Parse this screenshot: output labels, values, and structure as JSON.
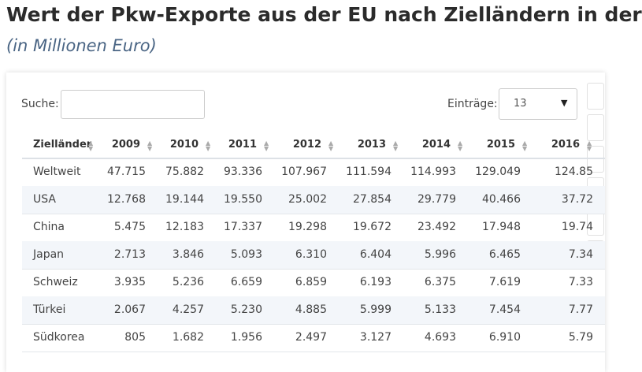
{
  "header": {
    "title": "Wert der Pkw-Exporte aus der EU nach Zielländern in der",
    "subtitle": "(in Millionen Euro)"
  },
  "controls": {
    "search_label": "Suche:",
    "entries_label": "Einträge:",
    "entries_value": "13"
  },
  "table": {
    "columns": [
      "Zielländer",
      "2009",
      "2010",
      "2011",
      "2012",
      "2013",
      "2014",
      "2015",
      "2016"
    ],
    "rows": [
      [
        "Weltweit",
        "47.715",
        "75.882",
        "93.336",
        "107.967",
        "111.594",
        "114.993",
        "129.049",
        "124.85"
      ],
      [
        "USA",
        "12.768",
        "19.144",
        "19.550",
        "25.002",
        "27.854",
        "29.779",
        "40.466",
        "37.72"
      ],
      [
        "China",
        "5.475",
        "12.183",
        "17.337",
        "19.298",
        "19.672",
        "23.492",
        "17.948",
        "19.74"
      ],
      [
        "Japan",
        "2.713",
        "3.846",
        "5.093",
        "6.310",
        "6.404",
        "5.996",
        "6.465",
        "7.34"
      ],
      [
        "Schweiz",
        "3.935",
        "5.236",
        "6.659",
        "6.859",
        "6.193",
        "6.375",
        "7.619",
        "7.33"
      ],
      [
        "Türkei",
        "2.067",
        "4.257",
        "5.230",
        "4.885",
        "5.999",
        "5.133",
        "7.454",
        "7.77"
      ],
      [
        "Südkorea",
        "805",
        "1.682",
        "1.956",
        "2.497",
        "3.127",
        "4.693",
        "6.910",
        "5.79"
      ]
    ]
  }
}
